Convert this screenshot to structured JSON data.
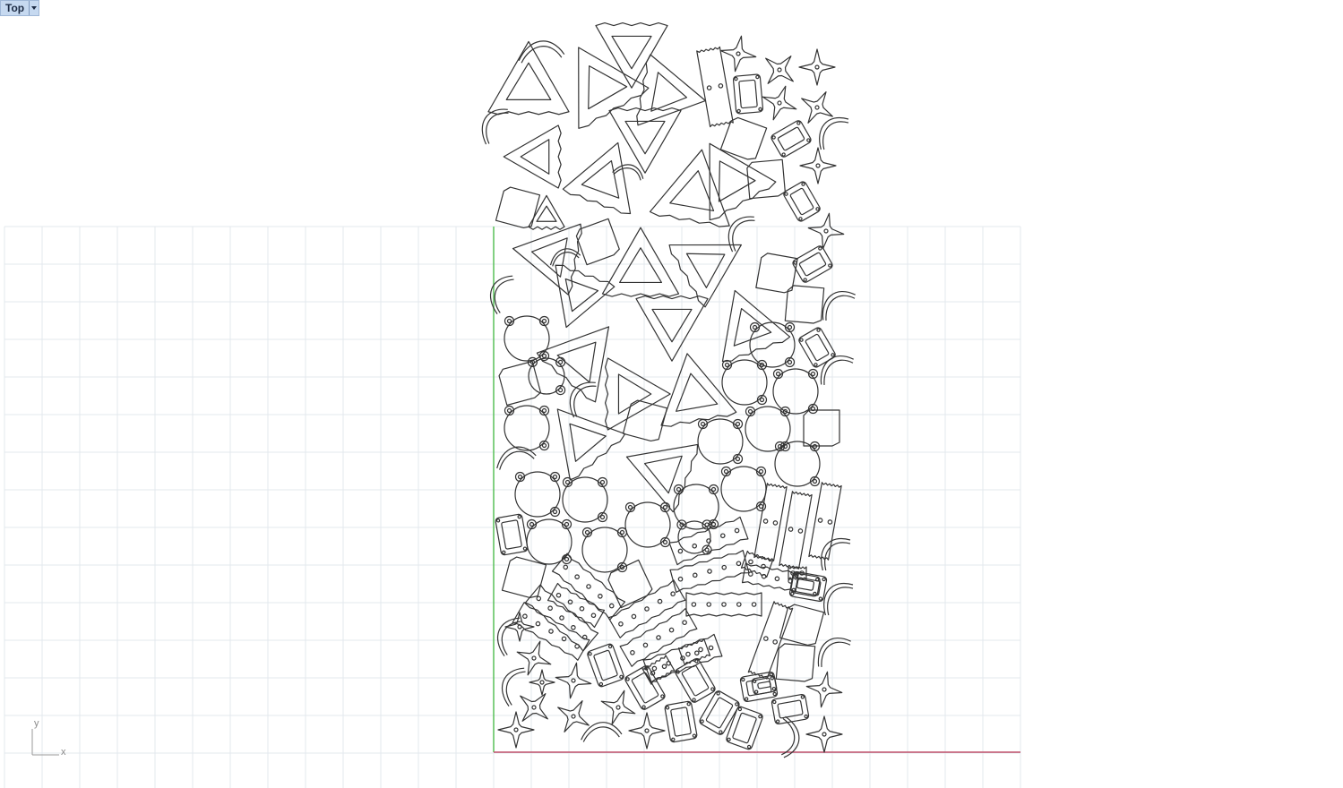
{
  "viewport": {
    "name": "Top",
    "menu_icon": "chevron-down-icon"
  },
  "axes": {
    "x_label": "x",
    "y_label": "y",
    "x_axis_color": "#c0506a",
    "y_axis_color": "#58c058"
  },
  "colors": {
    "background": "#ffffff",
    "grid": "#e3e8ee",
    "outline": "#333333"
  },
  "parts": {
    "triangles": 21,
    "circles": 17,
    "hooks": 18,
    "crosses": 18,
    "frames": 17,
    "blocks": 20,
    "plates": 13
  }
}
